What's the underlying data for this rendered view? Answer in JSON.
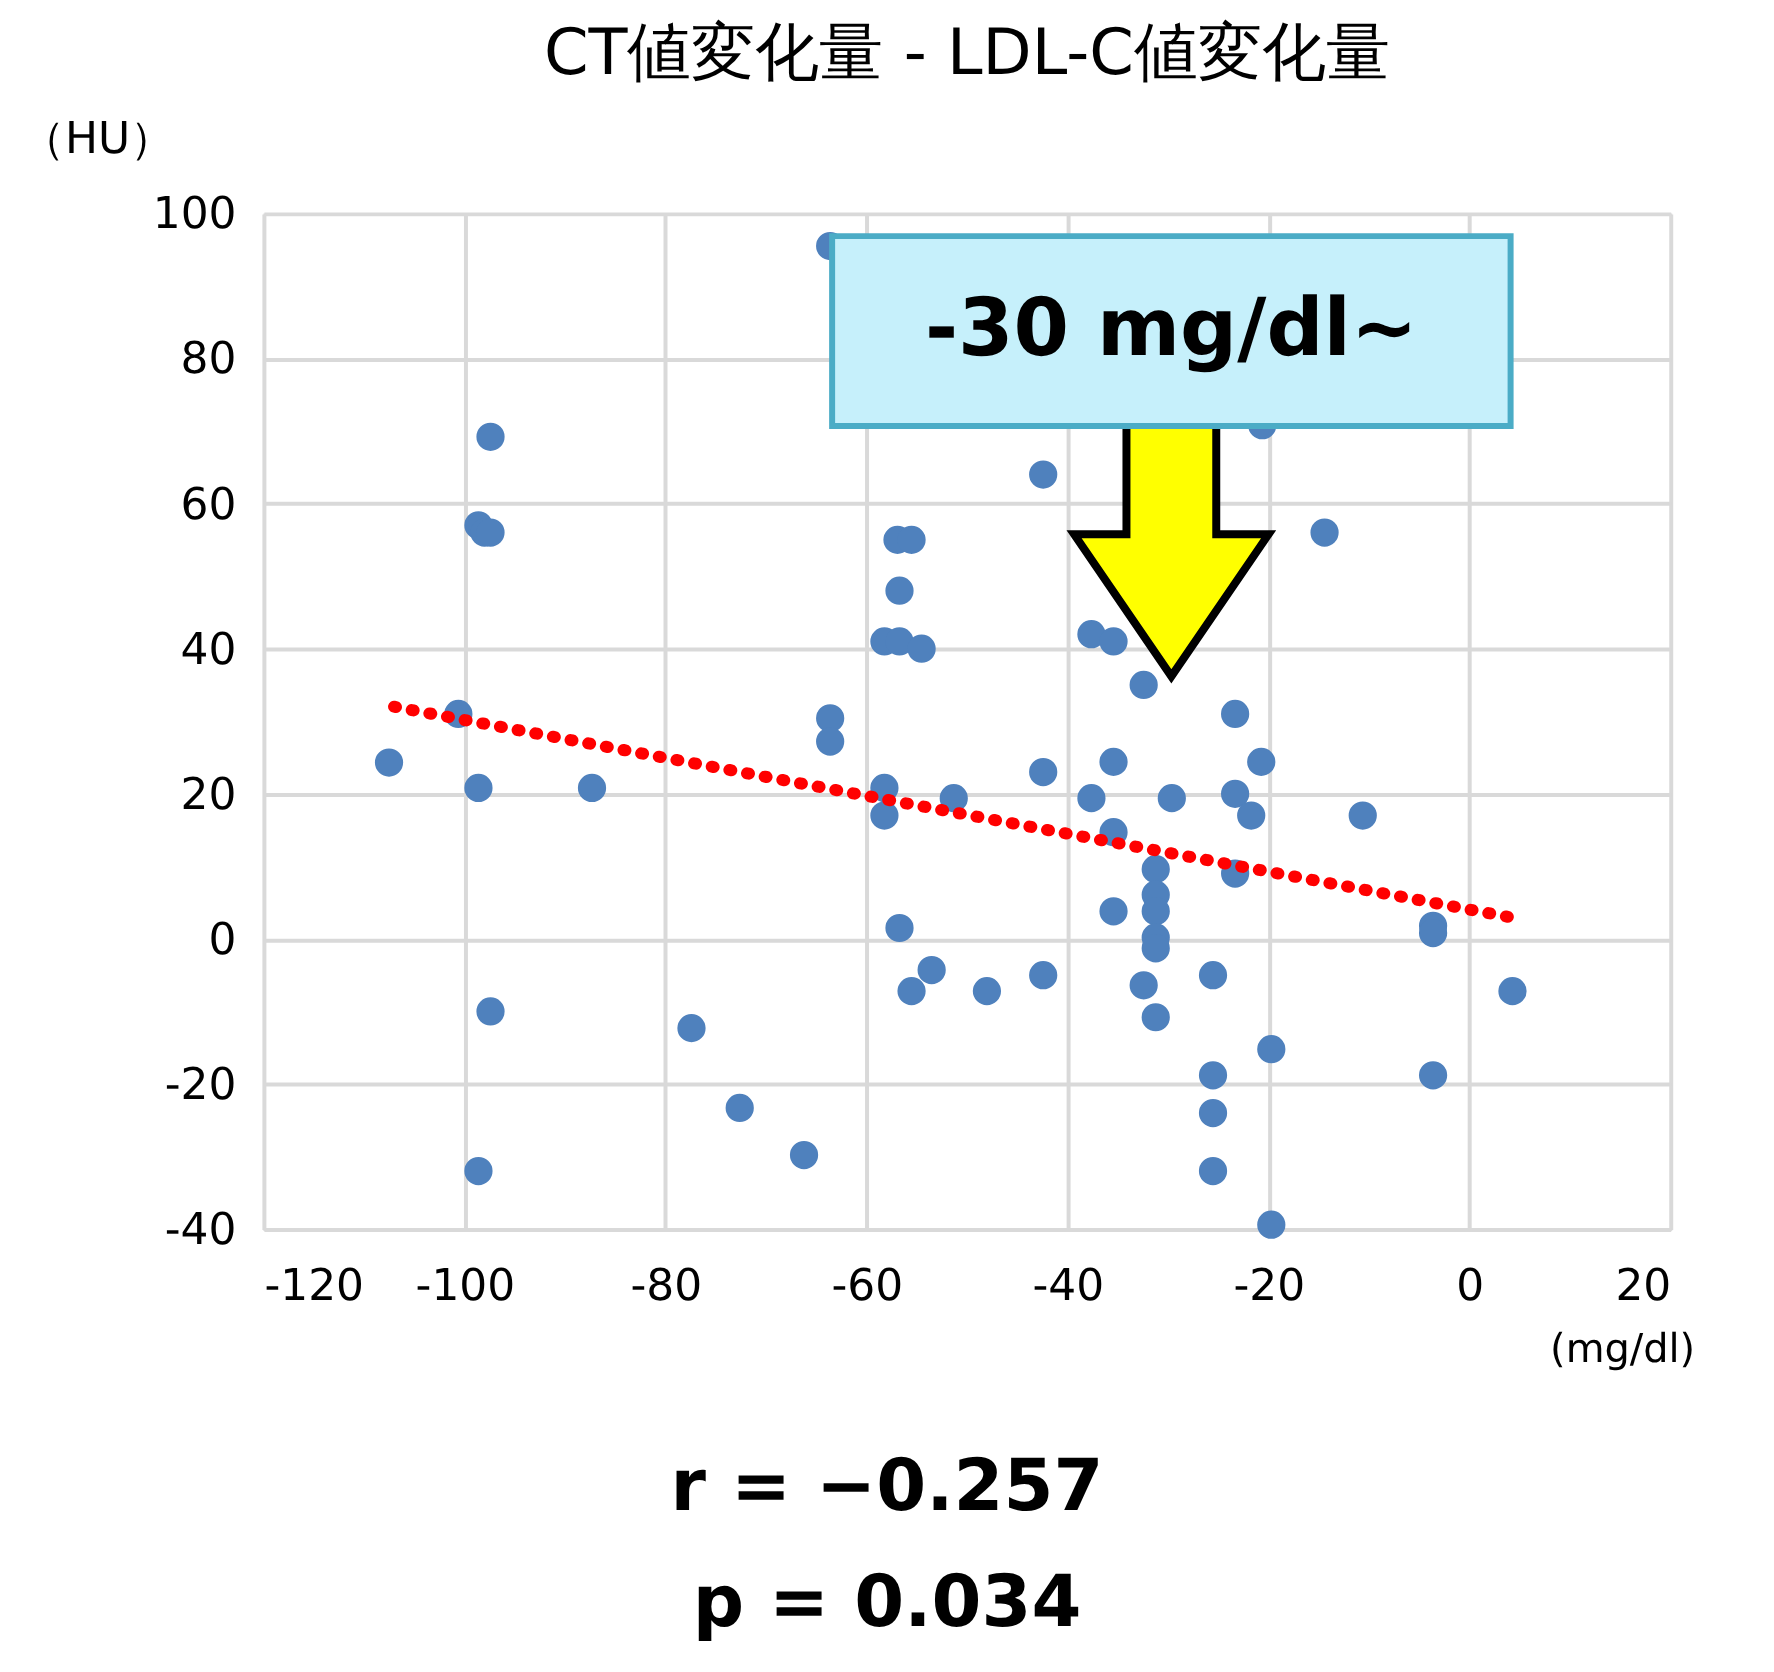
{
  "chart_data": {
    "type": "scatter",
    "title": "CT値変化量 - LDL-C値変化量",
    "xlabel": "(mg/dl)",
    "ylabel": "（HU）",
    "xlim": [
      -120,
      20
    ],
    "xticks": [
      -120,
      -100,
      -80,
      -60,
      -40,
      -20,
      0,
      20
    ],
    "ylim": [
      -40,
      100
    ],
    "yticks": [
      -40,
      -20,
      0,
      20,
      40,
      60,
      80,
      100
    ],
    "grid": true,
    "marker": "circle",
    "series": [
      {
        "color": "#4f81bd",
        "x": [
          -63.6,
          -97.4,
          -98.6,
          -98,
          -97.4,
          -56.9,
          -55.5,
          -56.7,
          -58.2,
          -56.7,
          -54.5,
          -42.4,
          -14.4,
          -37.6,
          -35.4,
          -32.4,
          -23.3,
          -20.6,
          -107.5,
          -100.6,
          -98.6,
          -87.3,
          -63.6,
          -63.6,
          -58.2,
          -58.2,
          -51.3,
          -56.7,
          -53.5,
          -55.5,
          -97.4,
          -77.4,
          -72.6,
          -66.2,
          -98.6,
          -35.4,
          -42.4,
          -20.7,
          -37.6,
          -29.6,
          -23.3,
          -21.7,
          -10.6,
          -35.4,
          -31.2,
          -23.3,
          -31.2,
          -31.2,
          -35.4,
          -31.2,
          -31.2,
          -3.6,
          -3.6,
          -42.4,
          -32.4,
          -25.5,
          -31.2,
          4.3,
          -19.7,
          -25.5,
          -3.6,
          -25.5,
          -25.5,
          -19.7,
          -48
        ],
        "values": [
          95.5,
          69.2,
          57,
          56,
          56,
          55,
          55,
          48,
          41,
          41,
          40,
          64,
          56,
          42,
          41,
          35,
          31,
          70.8,
          24.3,
          31,
          20.8,
          20.8,
          30.4,
          27.2,
          20.8,
          17,
          19.4,
          1.5,
          -4.3,
          -7.2,
          -10,
          -12.3,
          -23.3,
          -29.8,
          -32,
          24.4,
          23,
          24.4,
          19.4,
          19.4,
          20,
          17,
          17,
          14.7,
          9.6,
          9,
          6.1,
          3.8,
          3.8,
          0.2,
          -1.3,
          1.8,
          0.8,
          -5,
          -6.4,
          -5,
          -10.8,
          -7.2,
          -15.2,
          -18.8,
          -18.8,
          -24,
          -32,
          -39.4,
          -7.2
        ]
      },
      {
        "type": "line",
        "color": "#ff0000",
        "line_style": "dotted",
        "marker": "none",
        "x": [
          -107,
          4
        ],
        "values": [
          32,
          3
        ]
      }
    ],
    "annotations": [
      "-30 mg/dl~",
      "r = −0.257",
      "p = 0.034"
    ]
  }
}
